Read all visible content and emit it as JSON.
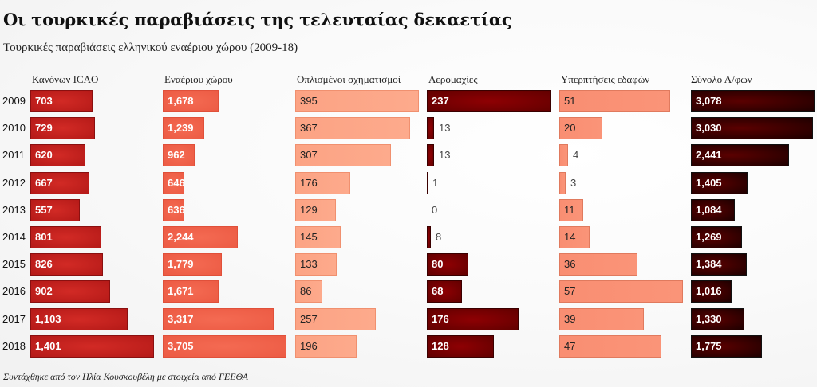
{
  "title": "Οι τουρκικές παραβιάσεις της τελευταίας δεκαετίας",
  "subtitle": "Τουρκικές παραβιάσεις ελληνικού εναέριου χώρου (2009-18)",
  "footer": "Συντάχθηκε από τον Ηλία Κουσκουβέλη με στοιχεία από ΓΕΕΘΑ",
  "chart_data": {
    "type": "bar",
    "orientation": "horizontal",
    "title": "Οι τουρκικές παραβιάσεις της τελευταίας δεκαετίας",
    "subtitle": "Τουρκικές παραβιάσεις ελληνικού εναέριου χώρου (2009-18)",
    "categories": [
      "2009",
      "2010",
      "2011",
      "2012",
      "2013",
      "2014",
      "2015",
      "2016",
      "2017",
      "2018"
    ],
    "series": [
      {
        "name": "Κανόνων ICAO",
        "color": "#c0201d",
        "label_color": "#ffffff",
        "values": [
          703,
          729,
          620,
          667,
          557,
          801,
          826,
          902,
          1103,
          1401
        ]
      },
      {
        "name": "Εναέριου χώρου",
        "color": "#ef604a",
        "label_color": "#ffffff",
        "values": [
          1678,
          1239,
          962,
          646,
          636,
          2244,
          1779,
          1671,
          3317,
          3705
        ]
      },
      {
        "name": "Οπλισμένοι σχηματισμοί",
        "color": "#fca486",
        "label_color": "#222222",
        "values": [
          395,
          367,
          307,
          176,
          129,
          145,
          133,
          86,
          257,
          196
        ]
      },
      {
        "name": "Αερομαχίες",
        "color": "#7a0000",
        "label_color": "#ffffff",
        "values": [
          237,
          13,
          13,
          1,
          0,
          8,
          80,
          68,
          176,
          128
        ]
      },
      {
        "name": "Υπερπτήσεις εδαφών",
        "color": "#f98f73",
        "label_color": "#222222",
        "values": [
          51,
          20,
          4,
          3,
          11,
          14,
          36,
          57,
          39,
          47
        ]
      },
      {
        "name": "Σύνολο Α/φών",
        "color": "#3a0000",
        "label_color": "#ffffff",
        "values": [
          3078,
          3030,
          2441,
          1405,
          1084,
          1269,
          1384,
          1016,
          1330,
          1775
        ]
      }
    ],
    "value_format": "thousands-comma",
    "legend": "none",
    "grid": false,
    "xlabel": "",
    "ylabel": ""
  }
}
